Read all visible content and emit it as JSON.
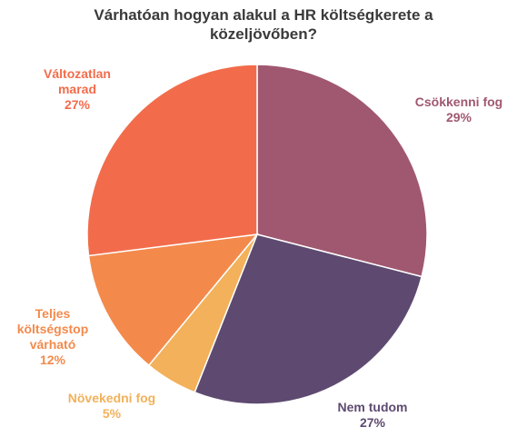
{
  "chart_data": {
    "type": "pie",
    "title_lines": [
      "Várhatóan hogyan alakul a HR költségkerete a",
      "közeljövőben?"
    ],
    "slices": [
      {
        "label_lines": [
          "Csökkenni fog"
        ],
        "value": 29,
        "value_label": "29%",
        "color": "#a05870"
      },
      {
        "label_lines": [
          "Nem tudom"
        ],
        "value": 27,
        "value_label": "27%",
        "color": "#5e4a70"
      },
      {
        "label_lines": [
          "Növekedni fog"
        ],
        "value": 5,
        "value_label": "5%",
        "color": "#f2b15a"
      },
      {
        "label_lines": [
          "Teljes",
          "költségstop",
          "várható"
        ],
        "value": 12,
        "value_label": "12%",
        "color": "#f38a4c"
      },
      {
        "label_lines": [
          "Változatlan",
          "marad"
        ],
        "value": 27,
        "value_label": "27%",
        "color": "#f26c4b"
      }
    ]
  }
}
